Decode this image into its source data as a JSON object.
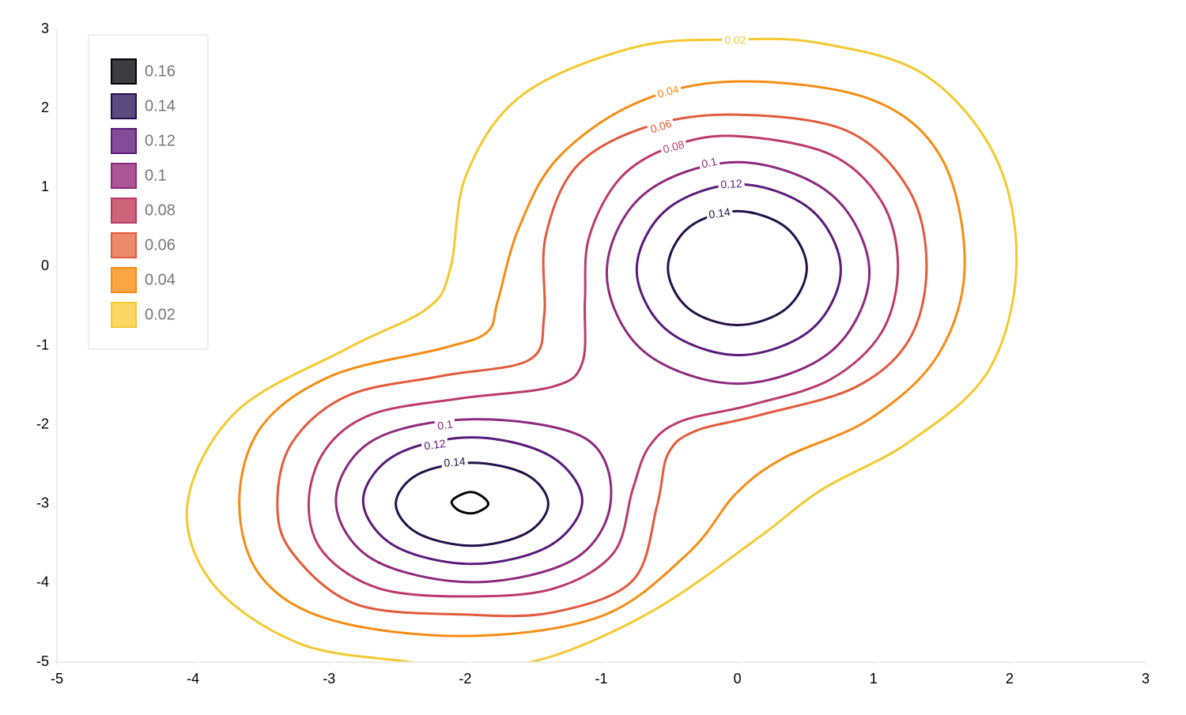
{
  "chart_data": {
    "type": "contour",
    "xlim": [
      -5,
      3
    ],
    "xticks": [
      -5,
      -4,
      -3,
      -2,
      -1,
      0,
      1,
      2,
      3
    ],
    "ylim": [
      -5,
      3
    ],
    "yticks": [
      -5,
      -4,
      -3,
      -2,
      -1,
      0,
      1,
      2,
      3
    ],
    "legend": "top-left",
    "series": [
      {
        "name": "0.16",
        "color": "#000000",
        "fill": "#3b3b40",
        "x": [
          -1.83,
          -1.88,
          -1.96,
          -2.05,
          -2.1,
          -2.05,
          -1.96,
          -1.88
        ],
        "y": [
          -3.0,
          -2.9,
          -2.85,
          -2.9,
          -2.98,
          -3.08,
          -3.12,
          -3.08
        ]
      },
      {
        "name": "0.14",
        "color": "#22104a",
        "fill": "#5b4a80",
        "x": [
          0.51,
          0.36,
          0,
          -0.36,
          -0.51,
          -0.36,
          0,
          0.36,
          null,
          -1.39,
          -1.55,
          -1.95,
          -2.35,
          -2.51,
          -2.35,
          -1.95,
          -1.55
        ],
        "y": [
          -0.02,
          0.49,
          0.7,
          0.49,
          -0.02,
          -0.53,
          -0.74,
          -0.53,
          null,
          -3.0,
          -2.63,
          -2.48,
          -2.63,
          -3.0,
          -3.37,
          -3.53,
          -3.37
        ]
      },
      {
        "name": "0.12",
        "color": "#5a1a7a",
        "fill": "#834c98",
        "x": [
          0.76,
          0.54,
          0.01,
          -0.52,
          -0.74,
          -0.52,
          0.01,
          0.54,
          null,
          -1.14,
          -1.38,
          -1.95,
          -2.52,
          -2.75,
          -2.52,
          -1.95,
          -1.38
        ],
        "y": [
          -0.04,
          0.72,
          1.04,
          0.72,
          -0.04,
          -0.8,
          -1.12,
          -0.8,
          null,
          -2.96,
          -2.39,
          -2.16,
          -2.39,
          -2.96,
          -3.53,
          -3.76,
          -3.53
        ]
      },
      {
        "name": "0.1",
        "color": "#8e2a7e",
        "fill": "#a95596",
        "x": [
          0.97,
          0.69,
          0,
          -0.69,
          -0.96,
          -0.69,
          0,
          0.69,
          null,
          -0.93,
          -1.12,
          -1.94,
          -2.68,
          -2.95,
          -2.68,
          -1.94,
          -1.2
        ],
        "y": [
          -0.08,
          0.91,
          1.32,
          0.91,
          -0.08,
          -1.07,
          -1.48,
          -1.07,
          null,
          -2.96,
          -2.17,
          -1.93,
          -2.2,
          -2.96,
          -3.7,
          -3.99,
          -3.7
        ]
      },
      {
        "name": "0.08",
        "color": "#bb3a6c",
        "fill": "#cd6479",
        "x": [
          -0.01,
          0.68,
          1.06,
          1.18,
          1.06,
          0.68,
          0.1,
          -0.42,
          -0.65,
          -0.77,
          -0.91,
          -1.35,
          -1.99,
          -2.63,
          -3.04,
          -3.15,
          -3.03,
          -2.69,
          -2.05,
          -1.36,
          -1.14,
          -1.12,
          -1.09,
          -0.86,
          -0.48
        ],
        "y": [
          1.65,
          1.42,
          0.82,
          0,
          -0.83,
          -1.43,
          -1.75,
          -1.96,
          -2.28,
          -2.82,
          -3.62,
          -4.07,
          -4.17,
          -4.07,
          -3.62,
          -2.99,
          -2.32,
          -1.87,
          -1.67,
          -1.52,
          -1.22,
          -0.43,
          0.37,
          1.12,
          1.52
        ]
      },
      {
        "name": "0.06",
        "color": "#e35a3c",
        "fill": "#ec8a6c",
        "x": [
          -0.01,
          0.8,
          1.26,
          1.39,
          1.26,
          0.86,
          0.16,
          -0.31,
          -0.51,
          -0.59,
          -0.77,
          -1.35,
          -1.99,
          -2.8,
          -3.27,
          -3.38,
          -3.27,
          -2.86,
          -2.16,
          -1.53,
          -1.42,
          -1.41,
          -1.18,
          -0.66
        ],
        "y": [
          1.92,
          1.72,
          0.97,
          0,
          -0.93,
          -1.53,
          -1.88,
          -2.08,
          -2.37,
          -3.02,
          -3.97,
          -4.37,
          -4.4,
          -4.27,
          -3.62,
          -2.99,
          -2.22,
          -1.63,
          -1.38,
          -1.18,
          -0.63,
          0.37,
          1.27,
          1.77
        ]
      },
      {
        "name": "0.04",
        "color": "#f68c12",
        "fill": "#fba544",
        "x": [
          -0.01,
          0.97,
          1.5,
          1.67,
          1.47,
          0.97,
          0.34,
          -0.01,
          -0.36,
          -1.0,
          -1.99,
          -2.98,
          -3.5,
          -3.66,
          -3.5,
          -2.98,
          -2.16,
          -1.84,
          -1.76,
          -1.61,
          -1.32,
          -0.74
        ],
        "y": [
          2.34,
          2.12,
          1.37,
          0,
          -1.13,
          -1.93,
          -2.42,
          -2.87,
          -3.62,
          -4.42,
          -4.67,
          -4.47,
          -3.92,
          -2.99,
          -2.03,
          -1.38,
          -1.03,
          -0.83,
          -0.43,
          0.47,
          1.37,
          2.07
        ]
      },
      {
        "name": "0.02",
        "color": "#f5c92f",
        "fill": "#fbd766",
        "x": [
          -0.01,
          0.62,
          1.38,
          1.9,
          2.05,
          1.84,
          1.26,
          0.62,
          0.16,
          -0.59,
          -1.35,
          -1.99,
          -2.4,
          -3.21,
          -3.85,
          -4.04,
          -3.68,
          -2.86,
          -2.28,
          -2.11,
          -1.99,
          -1.58,
          -0.76
        ],
        "y": [
          2.87,
          2.82,
          2.42,
          1.37,
          0,
          -1.33,
          -2.22,
          -2.82,
          -3.42,
          -4.32,
          -4.92,
          -5.1,
          -5.0,
          -4.77,
          -4.02,
          -2.99,
          -1.83,
          -1.03,
          -0.53,
          -0.03,
          1.17,
          2.17,
          2.77
        ]
      }
    ]
  }
}
